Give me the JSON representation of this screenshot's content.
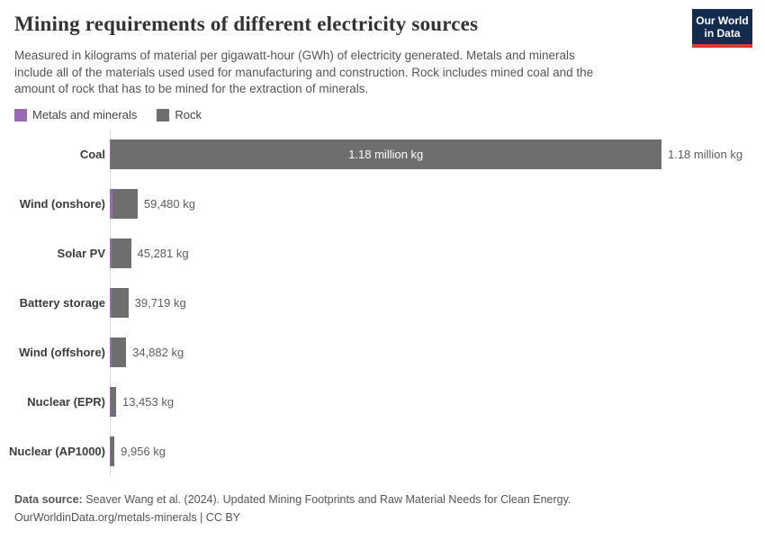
{
  "branding": {
    "logo_line1": "Our World",
    "logo_line2": "in Data",
    "logo_bg": "#122b4e",
    "logo_accent": "#d93a2b"
  },
  "chart_data": {
    "type": "bar",
    "orientation": "horizontal",
    "title": "Mining requirements of different electricity sources",
    "subtitle_lines": [
      "Measured in kilograms of material per gigawatt-hour (GWh) of electricity generated. Metals and minerals",
      "include all of the materials used used for manufacturing and construction. Rock includes mined coal and the",
      "amount of rock that has to be mined for the extraction of minerals."
    ],
    "unit": "kg of material per GWh",
    "x_max_kg": 1180000,
    "grid": false,
    "legend_position": "top-left",
    "series_meta": [
      {
        "name": "Metals and minerals",
        "color": "#9a6bb4"
      },
      {
        "name": "Rock",
        "color": "#6e6e6e"
      }
    ],
    "rows": [
      {
        "category": "Coal",
        "total_kg": 1180000,
        "metals_kg_est": 1000,
        "value_label": "1.18 million kg",
        "label_inside": true
      },
      {
        "category": "Wind (onshore)",
        "total_kg": 59480,
        "metals_kg_est": 5800,
        "value_label": "59,480 kg",
        "label_inside": false
      },
      {
        "category": "Solar PV",
        "total_kg": 45281,
        "metals_kg_est": 3900,
        "value_label": "45,281 kg",
        "label_inside": false
      },
      {
        "category": "Battery storage",
        "total_kg": 39719,
        "metals_kg_est": 2900,
        "value_label": "39,719 kg",
        "label_inside": false
      },
      {
        "category": "Wind (offshore)",
        "total_kg": 34882,
        "metals_kg_est": 3900,
        "value_label": "34,882 kg",
        "label_inside": false
      },
      {
        "category": "Nuclear (EPR)",
        "total_kg": 13453,
        "metals_kg_est": 1900,
        "value_label": "13,453 kg",
        "label_inside": false
      },
      {
        "category": "Nuclear (AP1000)",
        "total_kg": 9956,
        "metals_kg_est": 1900,
        "value_label": "9,956 kg",
        "label_inside": false
      }
    ]
  },
  "footer": {
    "source_label": "Data source:",
    "source_text": "Seaver Wang et al. (2024). Updated Mining Footprints and Raw Material Needs for Clean Energy.",
    "license_line": "OurWorldinData.org/metals-minerals | CC BY"
  }
}
